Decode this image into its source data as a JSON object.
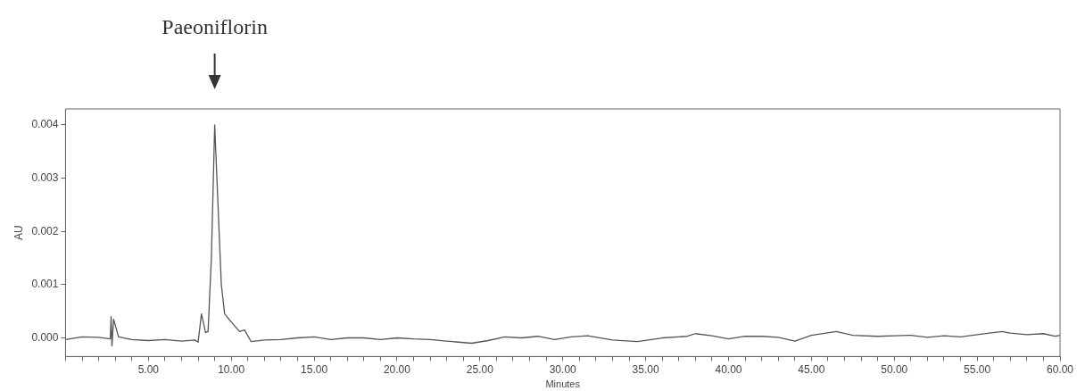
{
  "chart_data": {
    "type": "line",
    "xlabel": "Minutes",
    "ylabel": "AU",
    "annotations": [
      "Paeoniflorin"
    ],
    "xlim": [
      0,
      60
    ],
    "ylim": [
      -0.00035,
      0.0043
    ],
    "xticks": [
      {
        "value": 0,
        "label": null
      },
      {
        "value": 1,
        "label": null
      },
      {
        "value": 2,
        "label": null
      },
      {
        "value": 3,
        "label": null
      },
      {
        "value": 4,
        "label": null
      },
      {
        "value": 5,
        "label": "5.00"
      },
      {
        "value": 6,
        "label": null
      },
      {
        "value": 7,
        "label": null
      },
      {
        "value": 8,
        "label": null
      },
      {
        "value": 9,
        "label": null
      },
      {
        "value": 10,
        "label": "10.00"
      },
      {
        "value": 11,
        "label": null
      },
      {
        "value": 12,
        "label": null
      },
      {
        "value": 13,
        "label": null
      },
      {
        "value": 14,
        "label": null
      },
      {
        "value": 15,
        "label": "15.00"
      },
      {
        "value": 16,
        "label": null
      },
      {
        "value": 17,
        "label": null
      },
      {
        "value": 18,
        "label": null
      },
      {
        "value": 19,
        "label": null
      },
      {
        "value": 20,
        "label": "20.00"
      },
      {
        "value": 21,
        "label": null
      },
      {
        "value": 22,
        "label": null
      },
      {
        "value": 23,
        "label": null
      },
      {
        "value": 24,
        "label": null
      },
      {
        "value": 25,
        "label": "25.00"
      },
      {
        "value": 26,
        "label": null
      },
      {
        "value": 27,
        "label": null
      },
      {
        "value": 28,
        "label": null
      },
      {
        "value": 29,
        "label": null
      },
      {
        "value": 30,
        "label": "30.00"
      },
      {
        "value": 31,
        "label": null
      },
      {
        "value": 32,
        "label": null
      },
      {
        "value": 33,
        "label": null
      },
      {
        "value": 34,
        "label": null
      },
      {
        "value": 35,
        "label": "35.00"
      },
      {
        "value": 36,
        "label": null
      },
      {
        "value": 37,
        "label": null
      },
      {
        "value": 38,
        "label": null
      },
      {
        "value": 39,
        "label": null
      },
      {
        "value": 40,
        "label": "40.00"
      },
      {
        "value": 41,
        "label": null
      },
      {
        "value": 42,
        "label": null
      },
      {
        "value": 43,
        "label": null
      },
      {
        "value": 44,
        "label": null
      },
      {
        "value": 45,
        "label": "45.00"
      },
      {
        "value": 46,
        "label": null
      },
      {
        "value": 47,
        "label": null
      },
      {
        "value": 48,
        "label": null
      },
      {
        "value": 49,
        "label": null
      },
      {
        "value": 50,
        "label": "50.00"
      },
      {
        "value": 51,
        "label": null
      },
      {
        "value": 52,
        "label": null
      },
      {
        "value": 53,
        "label": null
      },
      {
        "value": 54,
        "label": null
      },
      {
        "value": 55,
        "label": "55.00"
      },
      {
        "value": 56,
        "label": null
      },
      {
        "value": 57,
        "label": null
      },
      {
        "value": 58,
        "label": null
      },
      {
        "value": 59,
        "label": null
      },
      {
        "value": 60,
        "label": "60.00"
      }
    ],
    "yticks": [
      {
        "value": 0,
        "label": "0.000"
      },
      {
        "value": 0.001,
        "label": "0.001"
      },
      {
        "value": 0.002,
        "label": "0.002"
      },
      {
        "value": 0.003,
        "label": "0.003"
      },
      {
        "value": 0.004,
        "label": "0.004"
      }
    ],
    "grid": false,
    "legend": false,
    "marker": "none",
    "line_style": "solid",
    "series": [
      {
        "color": "#555555",
        "x": [
          0,
          1,
          2,
          2.7,
          2.75,
          2.8,
          2.9,
          3.2,
          4,
          5,
          6,
          7,
          7.8,
          8.0,
          8.2,
          8.45,
          8.6,
          8.8,
          9.0,
          9.2,
          9.4,
          9.6,
          10.0,
          10.5,
          10.8,
          11.2,
          12,
          13,
          14,
          15,
          16,
          17,
          18,
          19,
          20,
          21,
          22,
          23,
          24.5,
          25.5,
          26.5,
          27.5,
          28.5,
          29.5,
          30.5,
          31.5,
          33,
          34.5,
          36,
          37.5,
          38,
          39,
          40,
          41,
          42,
          43,
          44,
          45,
          46.5,
          47.5,
          49,
          50,
          51,
          52,
          53,
          54,
          55,
          56.5,
          57,
          58,
          59,
          59.7,
          60
        ],
        "values": [
          -3e-05,
          2e-05,
          1e-05,
          -2e-05,
          0.0004,
          -0.00015,
          0.00035,
          2e-05,
          -3e-05,
          -5e-05,
          -3e-05,
          -6e-05,
          -4e-05,
          -8e-05,
          0.00045,
          0.0001,
          0.00012,
          0.0015,
          0.004,
          0.0025,
          0.001,
          0.00045,
          0.0003,
          0.00012,
          0.00015,
          -7e-05,
          -4e-05,
          -3e-05,
          0,
          2e-05,
          -3e-05,
          0,
          0,
          -3e-05,
          0,
          -2e-05,
          -3e-05,
          -6e-05,
          -0.0001,
          -5e-05,
          2e-05,
          0,
          3e-05,
          -3e-05,
          2e-05,
          4e-05,
          -4e-05,
          -7e-05,
          0,
          3e-05,
          8e-05,
          4e-05,
          -2e-05,
          3e-05,
          3e-05,
          1e-05,
          -6e-05,
          5e-05,
          0.00012,
          5e-05,
          3e-05,
          4e-05,
          5e-05,
          1e-05,
          4e-05,
          2e-05,
          6e-05,
          0.00012,
          9e-05,
          6e-05,
          8e-05,
          3e-05,
          5e-05
        ]
      }
    ]
  }
}
